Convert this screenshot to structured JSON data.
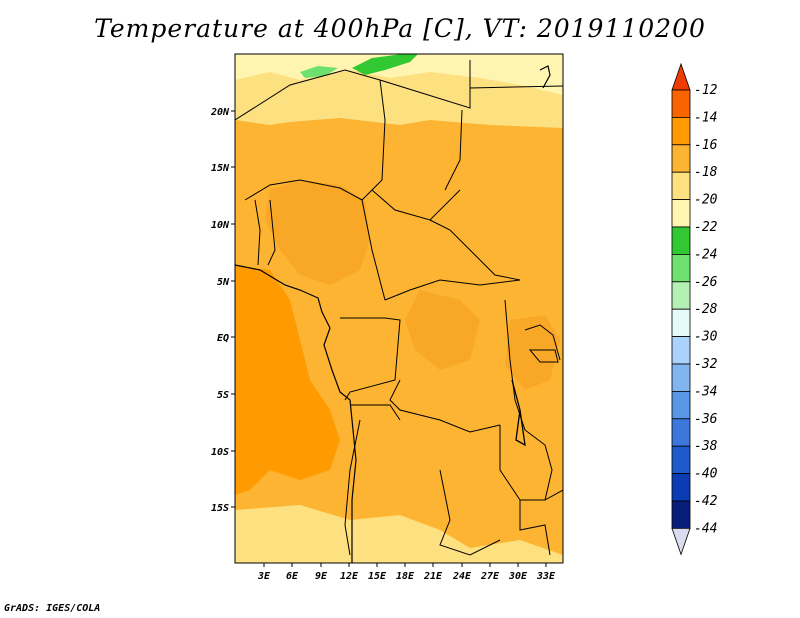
{
  "title": "Temperature at 400hPa [C], VT: 2019110200",
  "credit": "GrADS: IGES/COLA",
  "lat_labels": [
    "20N",
    "15N",
    "10N",
    "5N",
    "EQ",
    "5S",
    "10S",
    "15S"
  ],
  "lon_labels": [
    "3E",
    "6E",
    "9E",
    "12E",
    "15E",
    "18E",
    "21E",
    "24E",
    "27E",
    "30E",
    "33E"
  ],
  "colorbar": {
    "labels": [
      "-12",
      "-14",
      "-16",
      "-18",
      "-20",
      "-22",
      "-24",
      "-26",
      "-28",
      "-30",
      "-32",
      "-34",
      "-36",
      "-38",
      "-40",
      "-42",
      "-44"
    ],
    "colors": [
      "#f03c00",
      "#fa6400",
      "#ff9a00",
      "#fcb432",
      "#fde080",
      "#fff4b0",
      "#32c832",
      "#6ee06e",
      "#b4f0b4",
      "#e6fafa",
      "#aad2fa",
      "#82b4f0",
      "#5a96e6",
      "#3c78dc",
      "#1e5acc",
      "#0a3cb4",
      "#081e78",
      "#dcdcf0"
    ]
  }
}
